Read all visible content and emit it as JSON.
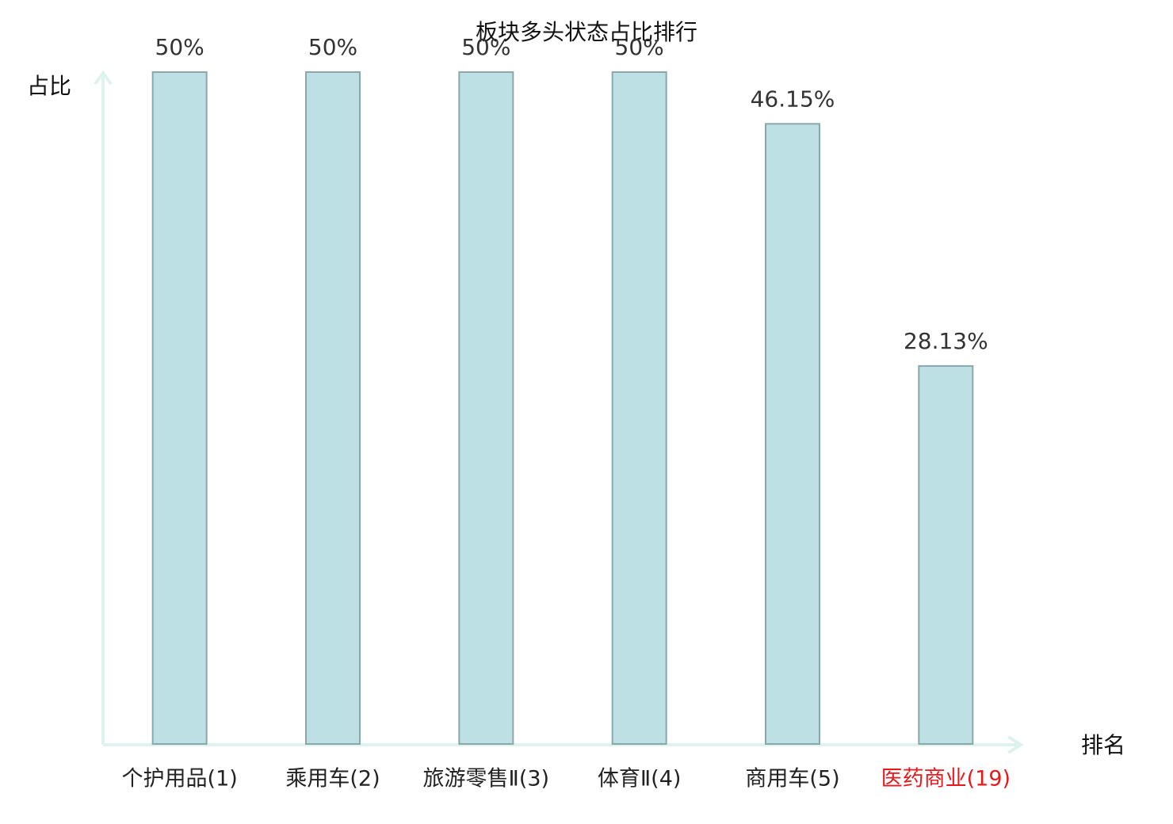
{
  "chart_data": {
    "type": "bar",
    "title": "板块多头状态占比排行",
    "y_label": "占比",
    "x_label": "排名",
    "categories": [
      "个护用品(1)",
      "乘用车(2)",
      "旅游零售Ⅱ(3)",
      "体育Ⅱ(4)",
      "商用车(5)",
      "医药商业(19)"
    ],
    "category_colors": [
      "#222222",
      "#222222",
      "#222222",
      "#222222",
      "#222222",
      "#e8191c"
    ],
    "values": [
      50,
      50,
      50,
      50,
      46.15,
      28.13
    ],
    "value_labels": [
      "50%",
      "50%",
      "50%",
      "50%",
      "46.15%",
      "28.13%"
    ],
    "color": "#bce0e3",
    "edge_color": "#8aa8aa",
    "ylim": [
      0,
      50
    ]
  }
}
